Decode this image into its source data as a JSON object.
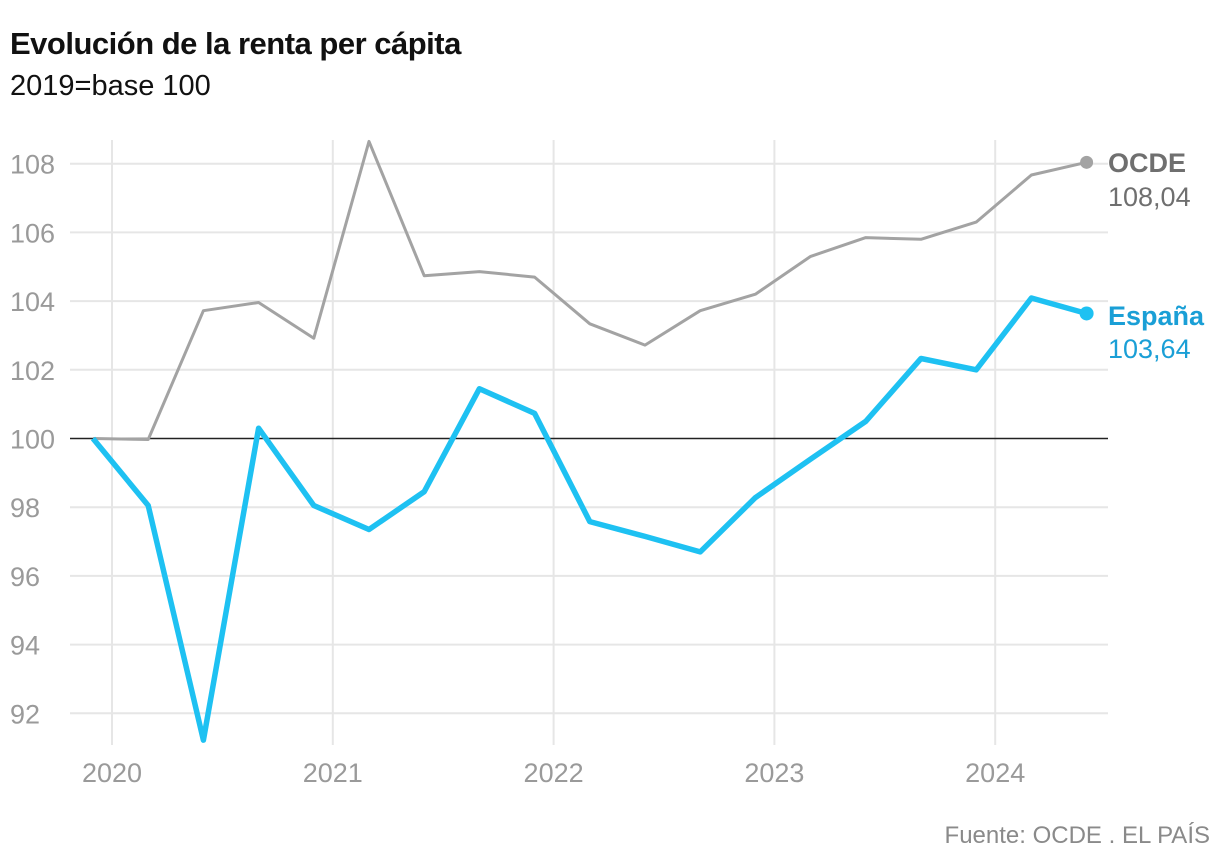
{
  "title": "Evolución de la renta per cápita",
  "subtitle": "2019=base 100",
  "source": "Fuente: OCDE . EL PAÍS",
  "colors": {
    "ocde": "#a3a3a3",
    "espana": "#1ec1f2",
    "espana_text": "#1a9fd6",
    "ocde_text": "#6f6f6f",
    "baseline": "#222222",
    "grid": "#e6e6e6"
  },
  "chart_data": {
    "type": "line",
    "ylim": [
      91.2,
      109
    ],
    "yticks": [
      "108",
      "106",
      "104",
      "102",
      "100",
      "98",
      "96",
      "94",
      "92"
    ],
    "xticks": [
      "2020",
      "2021",
      "2022",
      "2023",
      "2024"
    ],
    "grid": true,
    "baseline": 100,
    "x": [
      "2019-Q4",
      "2020-Q1",
      "2020-Q2",
      "2020-Q3",
      "2020-Q4",
      "2021-Q1",
      "2021-Q2",
      "2021-Q3",
      "2021-Q4",
      "2022-Q1",
      "2022-Q2",
      "2022-Q3",
      "2022-Q4",
      "2023-Q1",
      "2023-Q2",
      "2023-Q3",
      "2023-Q4",
      "2024-Q1",
      "2024-Q2"
    ],
    "series": [
      {
        "name": "OCDE",
        "end_label": "108,04",
        "values": [
          100.0,
          99.97,
          103.72,
          103.96,
          102.92,
          108.65,
          104.74,
          104.86,
          104.7,
          103.34,
          102.72,
          103.72,
          104.2,
          105.3,
          105.85,
          105.8,
          106.3,
          107.67,
          108.04
        ]
      },
      {
        "name": "España",
        "end_label": "103,64",
        "values": [
          100.0,
          98.05,
          91.22,
          100.3,
          98.05,
          97.35,
          98.45,
          101.45,
          100.73,
          97.58,
          97.15,
          96.7,
          98.28,
          99.4,
          100.5,
          102.33,
          102.0,
          104.09,
          103.64
        ]
      }
    ]
  }
}
